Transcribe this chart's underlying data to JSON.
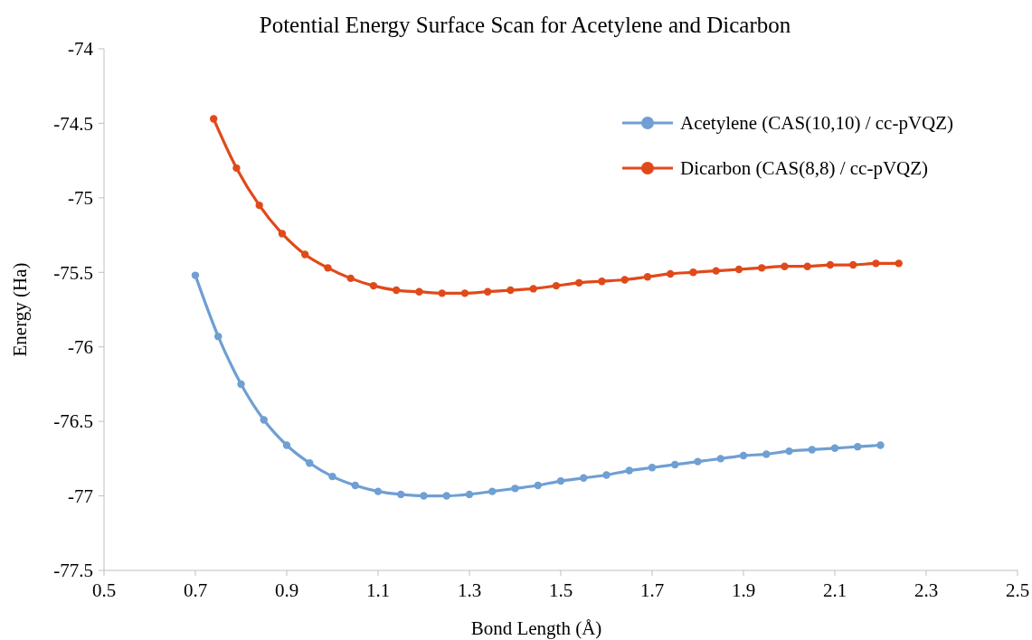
{
  "chart_data": {
    "type": "line",
    "title": "Potential Energy Surface Scan for Acetylene and Dicarbon",
    "xlabel": "Bond Length (Å)",
    "ylabel": "Energy (Ha)",
    "xlim": [
      0.5,
      2.5
    ],
    "xticks": [
      0.5,
      0.7,
      0.9,
      1.1,
      1.3,
      1.5,
      1.7,
      1.9,
      2.1,
      2.3,
      2.5
    ],
    "ylim": [
      -77.5,
      -74
    ],
    "yticks": [
      -77.5,
      -77,
      -76.5,
      -76,
      -75.5,
      -75,
      -74.5,
      -74
    ],
    "grid": false,
    "legend": "top right",
    "marker": "circle",
    "line_style": "solid",
    "series": [
      {
        "name": "Acetylene (CAS(10,10) / cc-pVQZ)",
        "color": "#6f9fd3",
        "x": [
          0.7,
          0.75,
          0.8,
          0.85,
          0.9,
          0.95,
          1.0,
          1.05,
          1.1,
          1.15,
          1.2,
          1.25,
          1.3,
          1.35,
          1.4,
          1.45,
          1.5,
          1.55,
          1.6,
          1.65,
          1.7,
          1.75,
          1.8,
          1.85,
          1.9,
          1.95,
          2.0,
          2.05,
          2.1,
          2.15,
          2.2
        ],
        "values": [
          -75.52,
          -75.93,
          -76.25,
          -76.49,
          -76.66,
          -76.78,
          -76.87,
          -76.93,
          -76.97,
          -76.99,
          -77.0,
          -77.0,
          -76.99,
          -76.97,
          -76.95,
          -76.93,
          -76.9,
          -76.88,
          -76.86,
          -76.83,
          -76.81,
          -76.79,
          -76.77,
          -76.75,
          -76.73,
          -76.72,
          -76.7,
          -76.69,
          -76.68,
          -76.67,
          -76.66
        ]
      },
      {
        "name": "Dicarbon (CAS(8,8) / cc-pVQZ)",
        "color": "#e04a1a",
        "x": [
          0.74,
          0.79,
          0.84,
          0.89,
          0.94,
          0.99,
          1.04,
          1.09,
          1.14,
          1.19,
          1.24,
          1.29,
          1.34,
          1.39,
          1.44,
          1.49,
          1.54,
          1.59,
          1.64,
          1.69,
          1.74,
          1.79,
          1.84,
          1.89,
          1.94,
          1.99,
          2.04,
          2.09,
          2.14,
          2.19,
          2.24
        ],
        "values": [
          -74.47,
          -74.8,
          -75.05,
          -75.24,
          -75.38,
          -75.47,
          -75.54,
          -75.59,
          -75.62,
          -75.63,
          -75.64,
          -75.64,
          -75.63,
          -75.62,
          -75.61,
          -75.59,
          -75.57,
          -75.56,
          -75.55,
          -75.53,
          -75.51,
          -75.5,
          -75.49,
          -75.48,
          -75.47,
          -75.46,
          -75.46,
          -75.45,
          -75.45,
          -75.44,
          -75.44
        ]
      }
    ]
  }
}
